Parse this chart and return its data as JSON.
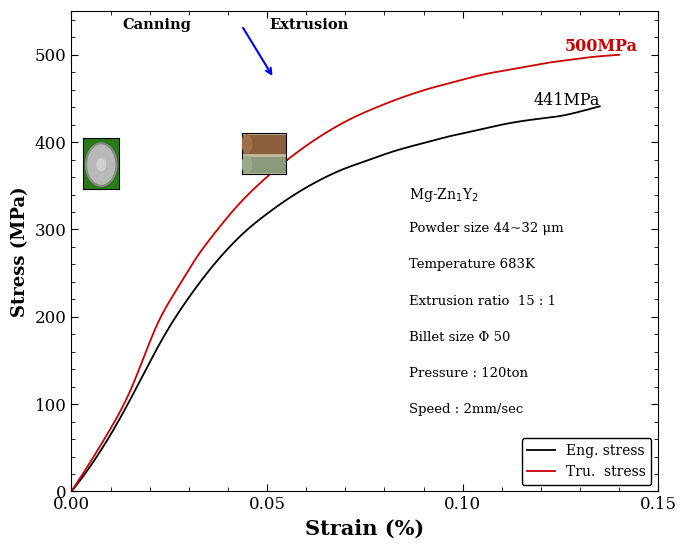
{
  "title": "",
  "xlabel": "Strain (%)",
  "ylabel": "Stress (MPa)",
  "xlim": [
    0.0,
    0.15
  ],
  "ylim": [
    0,
    550
  ],
  "xticks": [
    0.0,
    0.05,
    0.1,
    0.15
  ],
  "yticks": [
    0,
    100,
    200,
    300,
    400,
    500
  ],
  "eng_color": "#000000",
  "tru_color": "#cc0000",
  "eng_label": "Eng. stress",
  "tru_label": "Tru.  stress",
  "annotation_eng": "441MPa",
  "annotation_tru": "500MPa",
  "info_line1": "Mg-Zn",
  "info_sub1": "1",
  "info_mid": "Y",
  "info_sub2": "2",
  "info_lines": [
    "Powder size 44~32 μm",
    "Temperature 683K",
    "Extrusion ratio  15 : 1",
    "Billet size Φ 50",
    "Pressure : 120ton",
    "Speed : 2mm/sec"
  ],
  "canning_label": "Canning",
  "extrusion_label": "Extrusion",
  "eng_strain": [
    0.0,
    0.005,
    0.01,
    0.015,
    0.02,
    0.025,
    0.03,
    0.035,
    0.04,
    0.045,
    0.05,
    0.055,
    0.06,
    0.065,
    0.07,
    0.075,
    0.08,
    0.085,
    0.09,
    0.095,
    0.1,
    0.105,
    0.11,
    0.115,
    0.12,
    0.125,
    0.13,
    0.135
  ],
  "eng_stress": [
    0,
    30,
    65,
    105,
    148,
    188,
    222,
    252,
    278,
    300,
    318,
    334,
    348,
    360,
    370,
    378,
    386,
    393,
    399,
    405,
    410,
    415,
    420,
    424,
    427,
    430,
    435,
    441
  ],
  "tru_strain": [
    0.0,
    0.005,
    0.01,
    0.015,
    0.018,
    0.022,
    0.027,
    0.032,
    0.037,
    0.042,
    0.047,
    0.052,
    0.057,
    0.062,
    0.067,
    0.072,
    0.077,
    0.082,
    0.087,
    0.092,
    0.097,
    0.102,
    0.107,
    0.112,
    0.117,
    0.122,
    0.127,
    0.132,
    0.137,
    0.14
  ],
  "tru_stress": [
    0,
    35,
    72,
    115,
    148,
    192,
    232,
    268,
    298,
    325,
    348,
    368,
    386,
    402,
    416,
    428,
    438,
    447,
    455,
    462,
    468,
    474,
    479,
    483,
    487,
    491,
    494,
    497,
    499,
    500
  ]
}
